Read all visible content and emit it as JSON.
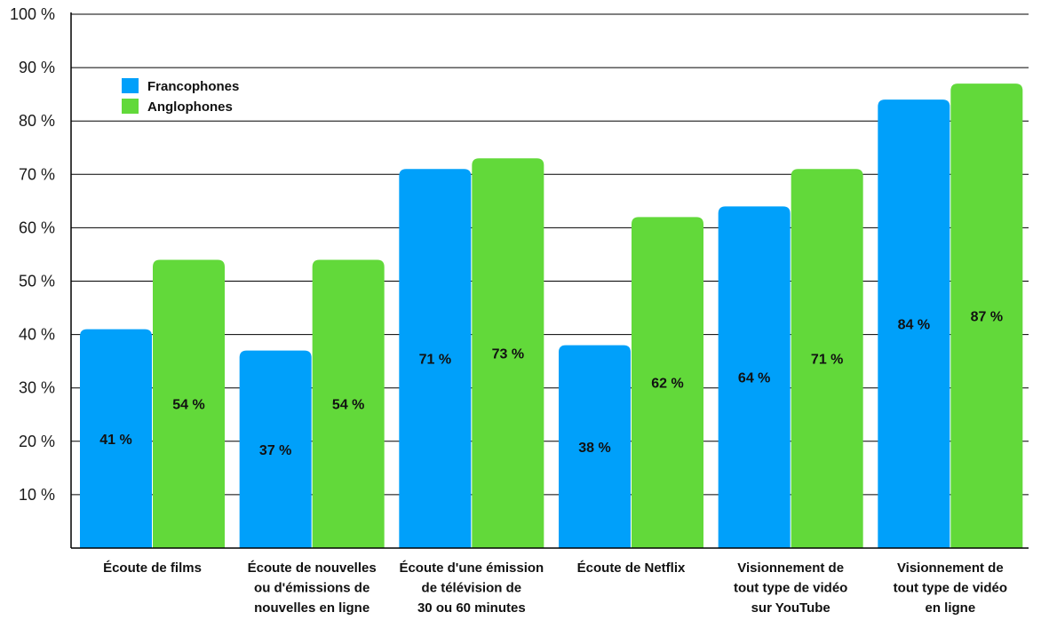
{
  "chart_data": {
    "type": "bar",
    "title": "",
    "xlabel": "",
    "ylabel": "",
    "ylim": [
      0,
      100
    ],
    "yticks": [
      10,
      20,
      30,
      40,
      50,
      60,
      70,
      80,
      90,
      100
    ],
    "ytick_labels": [
      "10 %",
      "20 %",
      "30 %",
      "40 %",
      "50 %",
      "60 %",
      "70 %",
      "80 %",
      "90 %",
      "100 %"
    ],
    "categories": [
      [
        "Écoute de films"
      ],
      [
        "Écoute de nouvelles",
        "ou d'émissions de",
        "nouvelles en ligne"
      ],
      [
        "Écoute d'une émission",
        "de télévision de",
        "30 ou 60 minutes"
      ],
      [
        "Écoute de Netflix"
      ],
      [
        "Visionnement de",
        "tout type de vidéo",
        "sur YouTube"
      ],
      [
        "Visionnement de",
        "tout type de vidéo",
        "en ligne"
      ]
    ],
    "series": [
      {
        "name": "Francophones",
        "color": "#00a0fa",
        "values": [
          41,
          37,
          71,
          38,
          64,
          84
        ],
        "labels": [
          "41 %",
          "37 %",
          "71 %",
          "38 %",
          "64 %",
          "84 %"
        ]
      },
      {
        "name": "Anglophones",
        "color": "#62d93a",
        "values": [
          54,
          54,
          73,
          62,
          71,
          87
        ],
        "labels": [
          "54 %",
          "54 %",
          "73 %",
          "62 %",
          "71 %",
          "87 %"
        ]
      }
    ],
    "grid": true,
    "legend_position": "top-left"
  }
}
